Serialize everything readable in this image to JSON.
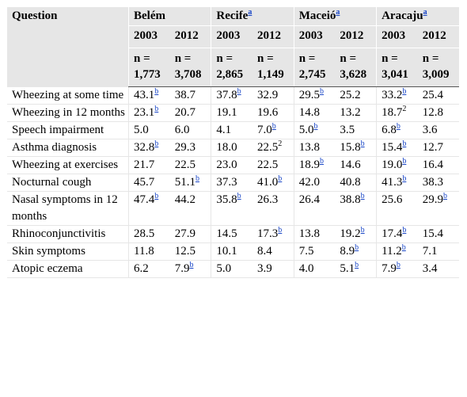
{
  "header": {
    "question_label": "Question",
    "cities": [
      {
        "name": "Belém",
        "note": ""
      },
      {
        "name": "Recife",
        "note": "a"
      },
      {
        "name": "Maceió",
        "note": "a"
      },
      {
        "name": "Aracaju",
        "note": "a"
      }
    ],
    "years": [
      "2003",
      "2012",
      "2003",
      "2012",
      "2003",
      "2012",
      "2003",
      "2012"
    ],
    "samples": [
      {
        "label": "n =",
        "value": "1,773"
      },
      {
        "label": "n =",
        "value": "3,708"
      },
      {
        "label": "n =",
        "value": "2,865"
      },
      {
        "label": "n =",
        "value": "1,149"
      },
      {
        "label": "n =",
        "value": "2,745"
      },
      {
        "label": "n =",
        "value": "3,628"
      },
      {
        "label": "n =",
        "value": "3,041"
      },
      {
        "label": "n =",
        "value": "3,009"
      }
    ]
  },
  "rows": [
    {
      "question": "Wheezing at some time",
      "cells": [
        {
          "v": "43.1",
          "s": "b"
        },
        {
          "v": "38.7",
          "s": ""
        },
        {
          "v": "37.8",
          "s": "b"
        },
        {
          "v": "32.9",
          "s": ""
        },
        {
          "v": "29.5",
          "s": "b"
        },
        {
          "v": "25.2",
          "s": ""
        },
        {
          "v": "33.2",
          "s": "b"
        },
        {
          "v": "25.4",
          "s": ""
        }
      ]
    },
    {
      "question": "Wheezing in 12 months",
      "cells": [
        {
          "v": "23.1",
          "s": "b"
        },
        {
          "v": "20.7",
          "s": ""
        },
        {
          "v": "19.1",
          "s": ""
        },
        {
          "v": "19.6",
          "s": ""
        },
        {
          "v": "14.8",
          "s": ""
        },
        {
          "v": "13.2",
          "s": ""
        },
        {
          "v": "18.7",
          "s": "2"
        },
        {
          "v": "12.8",
          "s": ""
        }
      ]
    },
    {
      "question": "Speech impairment",
      "cells": [
        {
          "v": "5.0",
          "s": ""
        },
        {
          "v": "6.0",
          "s": ""
        },
        {
          "v": "4.1",
          "s": ""
        },
        {
          "v": "7.0",
          "s": "b"
        },
        {
          "v": "5.0",
          "s": "b"
        },
        {
          "v": "3.5",
          "s": ""
        },
        {
          "v": "6.8",
          "s": "b"
        },
        {
          "v": "3.6",
          "s": ""
        }
      ]
    },
    {
      "question": "Asthma diagnosis",
      "cells": [
        {
          "v": "32.8",
          "s": "b"
        },
        {
          "v": "29.3",
          "s": ""
        },
        {
          "v": "18.0",
          "s": ""
        },
        {
          "v": "22.5",
          "s": "2"
        },
        {
          "v": "13.8",
          "s": ""
        },
        {
          "v": "15.8",
          "s": "b"
        },
        {
          "v": "15.4",
          "s": "b"
        },
        {
          "v": "12.7",
          "s": ""
        }
      ]
    },
    {
      "question": "Wheezing at exercises",
      "cells": [
        {
          "v": "21.7",
          "s": ""
        },
        {
          "v": "22.5",
          "s": ""
        },
        {
          "v": "23.0",
          "s": ""
        },
        {
          "v": "22.5",
          "s": ""
        },
        {
          "v": "18.9",
          "s": "b"
        },
        {
          "v": "14.6",
          "s": ""
        },
        {
          "v": "19.0",
          "s": "b"
        },
        {
          "v": "16.4",
          "s": ""
        }
      ]
    },
    {
      "question": "Nocturnal cough",
      "cells": [
        {
          "v": "45.7",
          "s": ""
        },
        {
          "v": "51.1",
          "s": "b"
        },
        {
          "v": "37.3",
          "s": ""
        },
        {
          "v": "41.0",
          "s": "b"
        },
        {
          "v": "42.0",
          "s": ""
        },
        {
          "v": "40.8",
          "s": ""
        },
        {
          "v": "41.3",
          "s": "b"
        },
        {
          "v": "38.3",
          "s": ""
        }
      ]
    },
    {
      "question": "Nasal symptoms in 12 months",
      "cells": [
        {
          "v": "47.4",
          "s": "b"
        },
        {
          "v": "44.2",
          "s": ""
        },
        {
          "v": "35.8",
          "s": "b"
        },
        {
          "v": "26.3",
          "s": ""
        },
        {
          "v": "26.4",
          "s": ""
        },
        {
          "v": "38.8",
          "s": "b"
        },
        {
          "v": "25.6",
          "s": ""
        },
        {
          "v": "29.9",
          "s": "b"
        }
      ]
    },
    {
      "question": "Rhinoconjunctivitis",
      "cells": [
        {
          "v": "28.5",
          "s": ""
        },
        {
          "v": "27.9",
          "s": ""
        },
        {
          "v": "14.5",
          "s": ""
        },
        {
          "v": "17.3",
          "s": "b"
        },
        {
          "v": "13.8",
          "s": ""
        },
        {
          "v": "19.2",
          "s": "b"
        },
        {
          "v": "17.4",
          "s": "b"
        },
        {
          "v": "15.4",
          "s": ""
        }
      ]
    },
    {
      "question": "Skin symptoms",
      "cells": [
        {
          "v": "11.8",
          "s": ""
        },
        {
          "v": "12.5",
          "s": ""
        },
        {
          "v": "10.1",
          "s": ""
        },
        {
          "v": "8.4",
          "s": ""
        },
        {
          "v": "7.5",
          "s": ""
        },
        {
          "v": "8.9",
          "s": "b"
        },
        {
          "v": "11.2",
          "s": "b"
        },
        {
          "v": "7.1",
          "s": ""
        }
      ]
    },
    {
      "question": "Atopic eczema",
      "cells": [
        {
          "v": "6.2",
          "s": ""
        },
        {
          "v": "7.9",
          "s": "b"
        },
        {
          "v": "5.0",
          "s": ""
        },
        {
          "v": "3.9",
          "s": ""
        },
        {
          "v": "4.0",
          "s": ""
        },
        {
          "v": "5.1",
          "s": "b"
        },
        {
          "v": "7.9",
          "s": "b"
        },
        {
          "v": "3.4",
          "s": ""
        }
      ]
    }
  ],
  "colors": {
    "header_bg": "#e6e6e6",
    "link": "#1a47c7",
    "grid": "#e6e6e6"
  }
}
